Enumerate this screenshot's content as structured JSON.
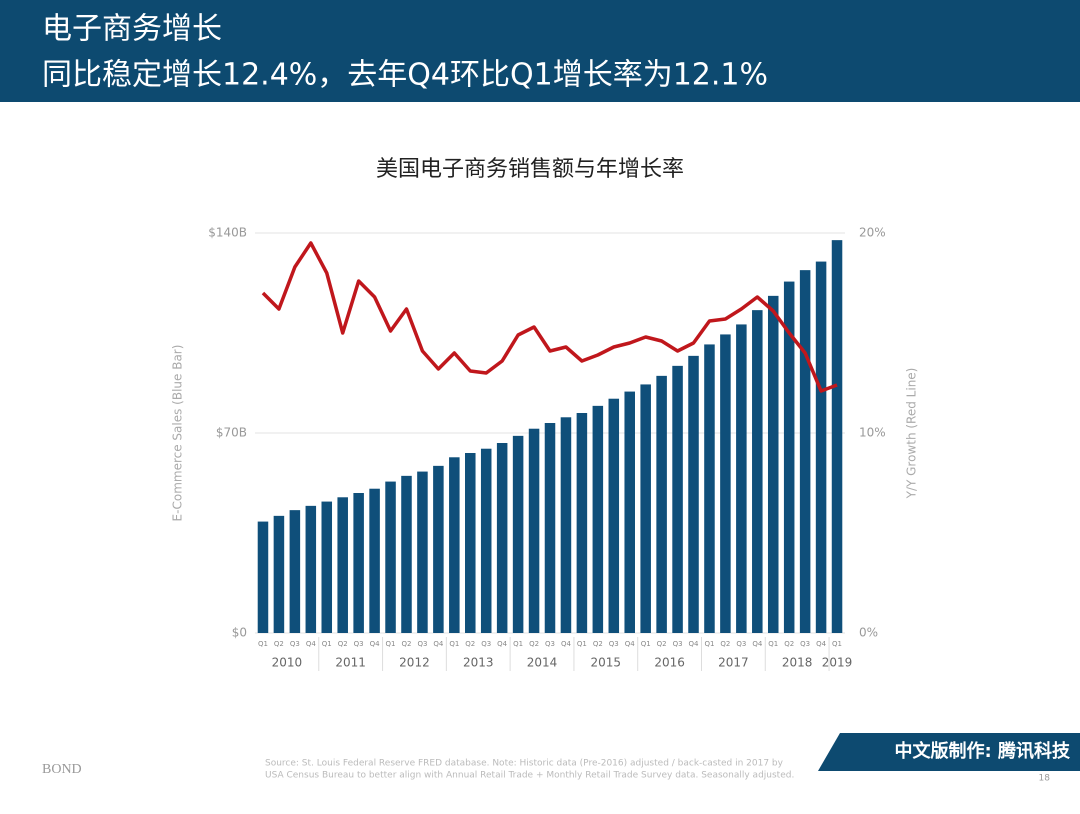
{
  "header": {
    "title": "电子商务增长",
    "subtitle": "同比稳定增长12.4%，去年Q4环比Q1增长率为12.1%"
  },
  "chart_data": {
    "type": "bar_line",
    "title": "美国电子商务销售额与年增长率",
    "ylabel": "E-Commerce Sales (Blue Bar)",
    "y2label": "Y/Y Growth (Red Line)",
    "categories": [
      "Q1",
      "Q2",
      "Q3",
      "Q4",
      "Q1",
      "Q2",
      "Q3",
      "Q4",
      "Q1",
      "Q2",
      "Q3",
      "Q4",
      "Q1",
      "Q2",
      "Q3",
      "Q4",
      "Q1",
      "Q2",
      "Q3",
      "Q4",
      "Q1",
      "Q2",
      "Q3",
      "Q4",
      "Q1",
      "Q2",
      "Q3",
      "Q4",
      "Q1",
      "Q2",
      "Q3",
      "Q4",
      "Q1",
      "Q2",
      "Q3",
      "Q4",
      "Q1"
    ],
    "year_labels": [
      "2010",
      "2011",
      "2012",
      "2013",
      "2014",
      "2015",
      "2016",
      "2017",
      "2018",
      "2019"
    ],
    "series": [
      {
        "name": "E-Commerce Sales",
        "color": "#0f4f7a",
        "kind": "bar",
        "values": [
          39,
          41,
          43,
          44.5,
          46,
          47.5,
          49,
          50.5,
          53,
          55,
          56.5,
          58.5,
          61.5,
          63,
          64.5,
          66.5,
          69,
          71.5,
          73.5,
          75.5,
          77,
          79.5,
          82,
          84.5,
          87,
          90,
          93.5,
          97,
          101,
          104.5,
          108,
          113,
          118,
          123,
          127,
          130,
          137.5
        ]
      },
      {
        "name": "Y/Y Growth",
        "color": "#c0171c",
        "kind": "line",
        "axis": "y2",
        "values": [
          17.0,
          16.2,
          18.3,
          19.5,
          18.0,
          15.0,
          17.6,
          16.8,
          15.1,
          16.2,
          14.1,
          13.2,
          14.0,
          13.1,
          13.0,
          13.6,
          14.9,
          15.3,
          14.1,
          14.3,
          13.6,
          13.9,
          14.3,
          14.5,
          14.8,
          14.6,
          14.1,
          14.5,
          15.6,
          15.7,
          16.2,
          16.8,
          16.1,
          15.0,
          14.0,
          12.1,
          12.4
        ]
      }
    ],
    "ylim": [
      0,
      140
    ],
    "yticks": [
      {
        "value": 0,
        "label": "$0"
      },
      {
        "value": 70,
        "label": "$70B"
      },
      {
        "value": 140,
        "label": "$140B"
      }
    ],
    "y2lim": [
      0,
      20
    ],
    "y2ticks": [
      {
        "value": 0,
        "label": "0%"
      },
      {
        "value": 10,
        "label": "10%"
      },
      {
        "value": 20,
        "label": "20%"
      }
    ],
    "grid": true
  },
  "footer": {
    "source_1": "Source: St. Louis Federal Reserve FRED database.  Note: Historic data (Pre-2016) adjusted / back-casted in 2017 by",
    "source_2": "USA Census Bureau to better align with Annual Retail Trade + Monthly Retail Trade Survey data. Seasonally adjusted.",
    "brand": "BOND",
    "credit": "中文版制作: 腾讯科技",
    "page": "18"
  }
}
